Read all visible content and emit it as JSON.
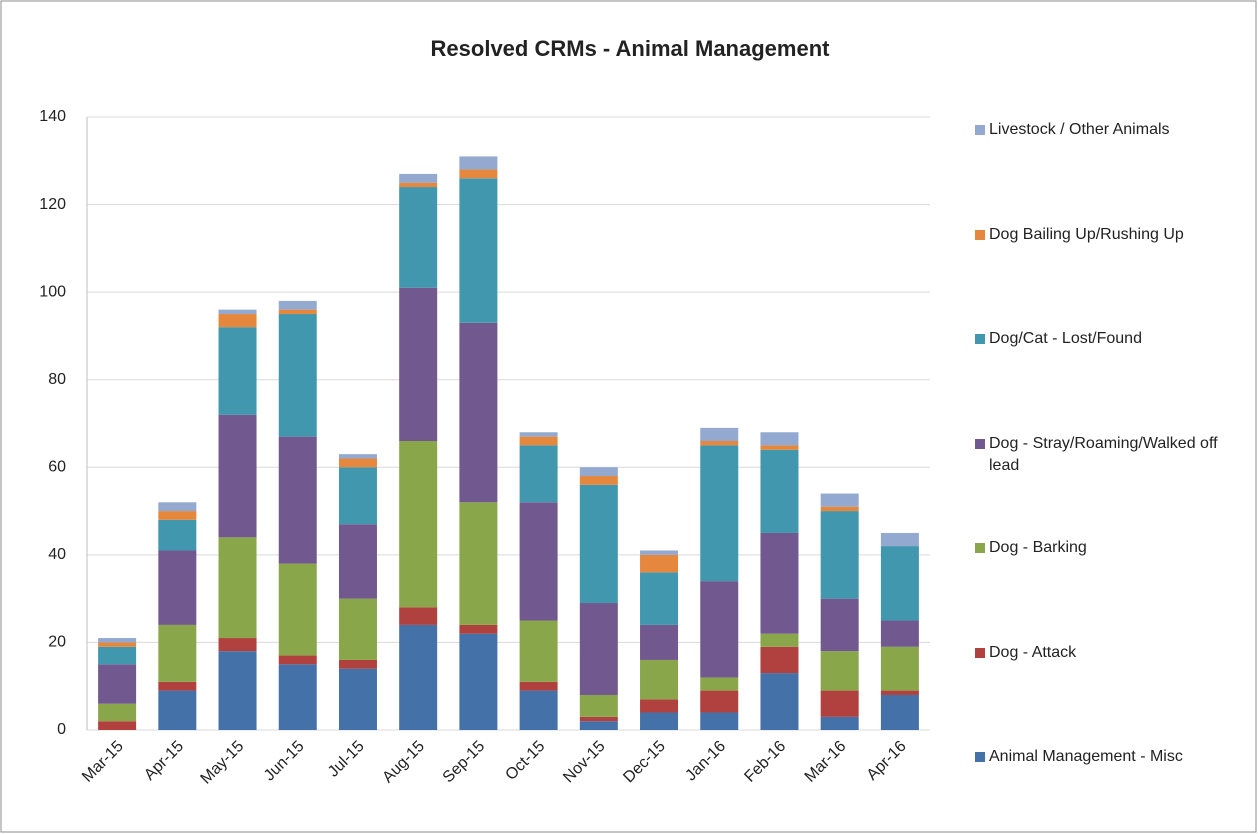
{
  "chart_data": {
    "type": "stacked_bar",
    "title": "Resolved CRMs - Animal Management",
    "categories": [
      "Mar-15",
      "Apr-15",
      "May-15",
      "Jun-15",
      "Jul-15",
      "Aug-15",
      "Sep-15",
      "Oct-15",
      "Nov-15",
      "Dec-15",
      "Jan-16",
      "Feb-16",
      "Mar-16",
      "Apr-16"
    ],
    "series": [
      {
        "name": "Animal Management - Misc",
        "color": "#4571a9",
        "values": [
          0,
          9,
          18,
          15,
          14,
          24,
          22,
          9,
          2,
          4,
          4,
          13,
          3,
          8
        ]
      },
      {
        "name": "Dog - Attack",
        "color": "#b0413e",
        "values": [
          2,
          2,
          3,
          2,
          2,
          4,
          2,
          2,
          1,
          3,
          5,
          6,
          6,
          1
        ]
      },
      {
        "name": "Dog - Barking",
        "color": "#8aa64a",
        "values": [
          4,
          13,
          23,
          21,
          14,
          38,
          28,
          14,
          5,
          9,
          3,
          3,
          9,
          10
        ]
      },
      {
        "name": "Dog - Stray/Roaming/Walked off lead",
        "color": "#71588f",
        "values": [
          9,
          17,
          28,
          29,
          17,
          35,
          41,
          27,
          21,
          8,
          22,
          23,
          12,
          6
        ]
      },
      {
        "name": "Dog/Cat - Lost/Found",
        "color": "#4197ad",
        "values": [
          4,
          7,
          20,
          28,
          13,
          23,
          33,
          13,
          27,
          12,
          31,
          19,
          20,
          17
        ]
      },
      {
        "name": "Dog Bailing Up/Rushing Up",
        "color": "#e5873d",
        "values": [
          1,
          2,
          3,
          1,
          2,
          1,
          2,
          2,
          2,
          4,
          1,
          1,
          1,
          0
        ]
      },
      {
        "name": "Livestock / Other Animals",
        "color": "#93a9cf",
        "values": [
          1,
          2,
          1,
          2,
          1,
          2,
          3,
          1,
          2,
          1,
          3,
          3,
          3,
          3
        ]
      }
    ],
    "ylim": [
      0,
      140
    ],
    "yticks": [
      0,
      20,
      40,
      60,
      80,
      100,
      120,
      140
    ],
    "grid": true
  }
}
